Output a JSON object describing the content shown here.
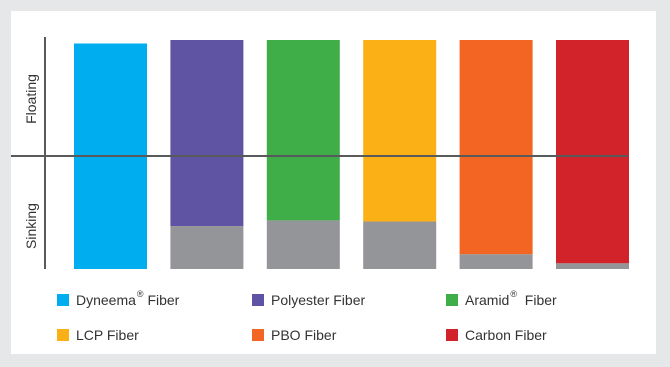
{
  "chart_data": {
    "type": "bar",
    "categories": [
      "Dyneema® Fiber",
      "Polyester Fiber",
      "Aramid® Fiber",
      "LCP Fiber",
      "PBO Fiber",
      "Carbon Fiber"
    ],
    "series": [
      {
        "values": [
          -1.0,
          -0.62,
          -0.57,
          -0.58,
          -0.87,
          -0.95
        ]
      },
      {
        "values": [
          0.97,
          1.0,
          1.0,
          1.0,
          1.0,
          1.0
        ]
      }
    ],
    "colors": [
      "#00aeef",
      "#5e54a3",
      "#3fae49",
      "#fbb116",
      "#f26522",
      "#d2232a"
    ],
    "sinking_color": "#939598",
    "waterline_color": "#58595b",
    "ylabel_top": "Floating",
    "ylabel_bottom": "Sinking",
    "ylim": [
      -1.0,
      1.0
    ],
    "grid": false,
    "legend_position": "bottom"
  },
  "legend": {
    "items": [
      {
        "label": "Dyneema",
        "sup": "®",
        "suffix": " Fiber"
      },
      {
        "label": "Polyester Fiber",
        "sup": "",
        "suffix": ""
      },
      {
        "label": "Aramid",
        "sup": "®",
        "suffix": "  Fiber"
      },
      {
        "label": "LCP Fiber",
        "sup": "",
        "suffix": ""
      },
      {
        "label": "PBO Fiber",
        "sup": "",
        "suffix": ""
      },
      {
        "label": "Carbon Fiber",
        "sup": "",
        "suffix": ""
      }
    ]
  }
}
